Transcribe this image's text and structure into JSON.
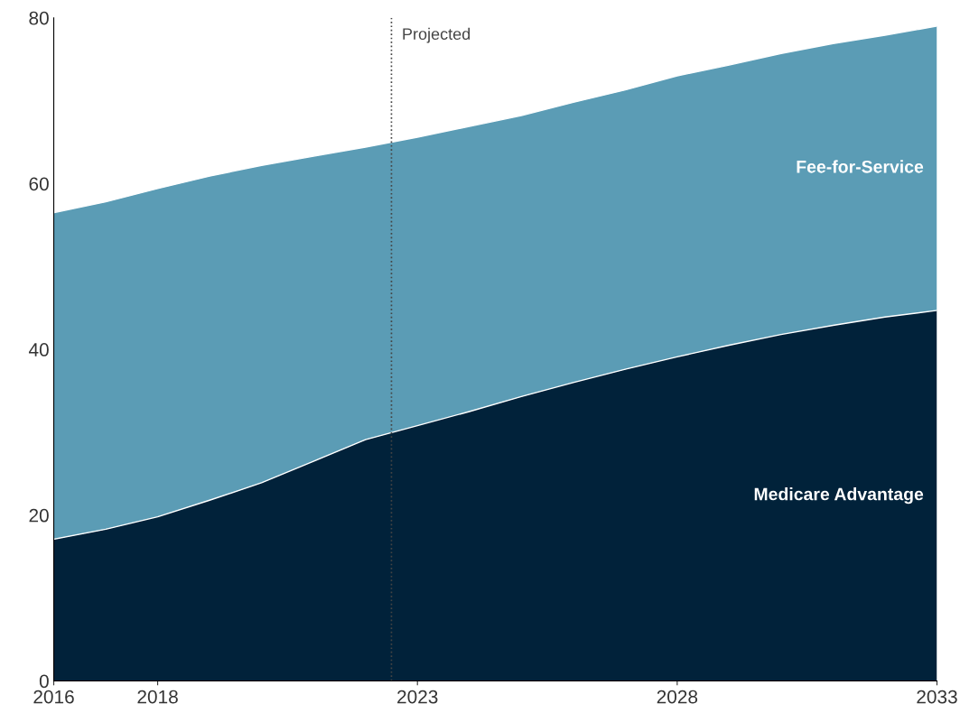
{
  "chart_data": {
    "type": "area",
    "stacked": true,
    "x": [
      2016,
      2017,
      2018,
      2019,
      2020,
      2021,
      2022,
      2023,
      2024,
      2025,
      2026,
      2027,
      2028,
      2029,
      2030,
      2031,
      2032,
      2033
    ],
    "series": [
      {
        "name": "Medicare Advantage",
        "color": "#01223a",
        "values": [
          17.1,
          18.3,
          19.8,
          21.8,
          23.9,
          26.5,
          29.1,
          30.8,
          32.5,
          34.3,
          36.0,
          37.6,
          39.1,
          40.5,
          41.8,
          42.9,
          43.9,
          44.7
        ]
      },
      {
        "name": "Fee-for-Service",
        "color": "#5b9cb5",
        "values": [
          39.4,
          39.5,
          39.6,
          39.1,
          38.3,
          36.8,
          35.3,
          34.8,
          34.4,
          33.9,
          33.8,
          33.7,
          33.9,
          33.8,
          33.9,
          34.0,
          34.0,
          34.3
        ]
      }
    ],
    "xlim": [
      2016,
      2033
    ],
    "xticks": [
      2016,
      2018,
      2023,
      2028,
      2033
    ],
    "ylim": [
      0,
      80
    ],
    "yticks": [
      0,
      20,
      40,
      60,
      80
    ],
    "grid": false,
    "legend": false,
    "ref_lines": [
      {
        "axis": "x",
        "value": 2022.5,
        "label": "Projected",
        "color": "#444444",
        "line_style": "dotted"
      }
    ]
  }
}
